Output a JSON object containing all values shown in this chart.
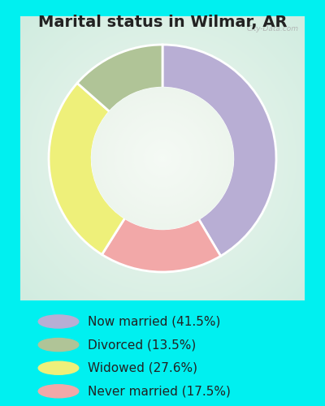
{
  "title": "Marital status in Wilmar, AR",
  "categories": [
    "Now married (41.5%)",
    "Divorced (13.5%)",
    "Widowed (27.6%)",
    "Never married (17.5%)"
  ],
  "values": [
    41.5,
    13.5,
    27.6,
    17.5
  ],
  "colors": [
    "#b8aed4",
    "#b0c497",
    "#eef07a",
    "#f2a8a8"
  ],
  "chart_bg": "#d4ede0",
  "outer_bg": "#00f0f0",
  "title_fontsize": 14,
  "legend_fontsize": 11,
  "watermark": "City-Data.com"
}
